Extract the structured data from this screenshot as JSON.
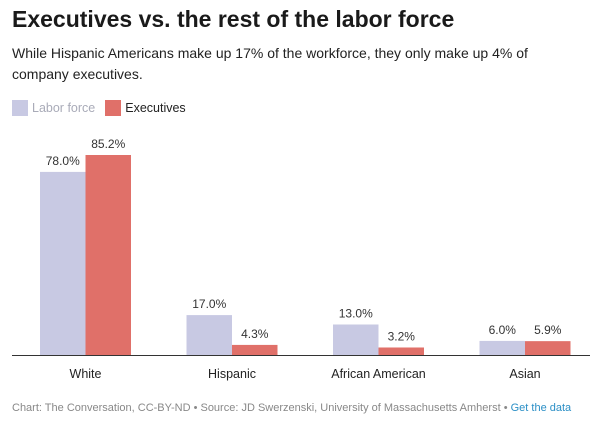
{
  "title": "Executives vs. the rest of the labor force",
  "subtitle": "While Hispanic Americans make up 17% of the workforce, they only make up 4% of company executives.",
  "legend": [
    {
      "label": "Labor force",
      "color": "#c8c9e3"
    },
    {
      "label": "Executives",
      "color": "#e07069"
    }
  ],
  "footer": {
    "text": "Chart: The Conversation, CC-BY-ND • Source: JD Swerzenski, University of Massachusetts Amherst • ",
    "link": "Get the data"
  },
  "chart_data": {
    "type": "bar",
    "categories": [
      "White",
      "Hispanic",
      "African American",
      "Asian"
    ],
    "series": [
      {
        "name": "Labor force",
        "values": [
          78.0,
          17.0,
          13.0,
          6.0
        ],
        "labels": [
          "78.0%",
          "17.0%",
          "13.0%",
          "6.0%"
        ],
        "color": "#c8c9e3"
      },
      {
        "name": "Executives",
        "values": [
          85.2,
          4.3,
          3.2,
          5.9
        ],
        "labels": [
          "85.2%",
          "4.3%",
          "3.2%",
          "5.9%"
        ],
        "color": "#e07069"
      }
    ],
    "ylim": [
      0,
      85.2
    ],
    "grid": false
  }
}
